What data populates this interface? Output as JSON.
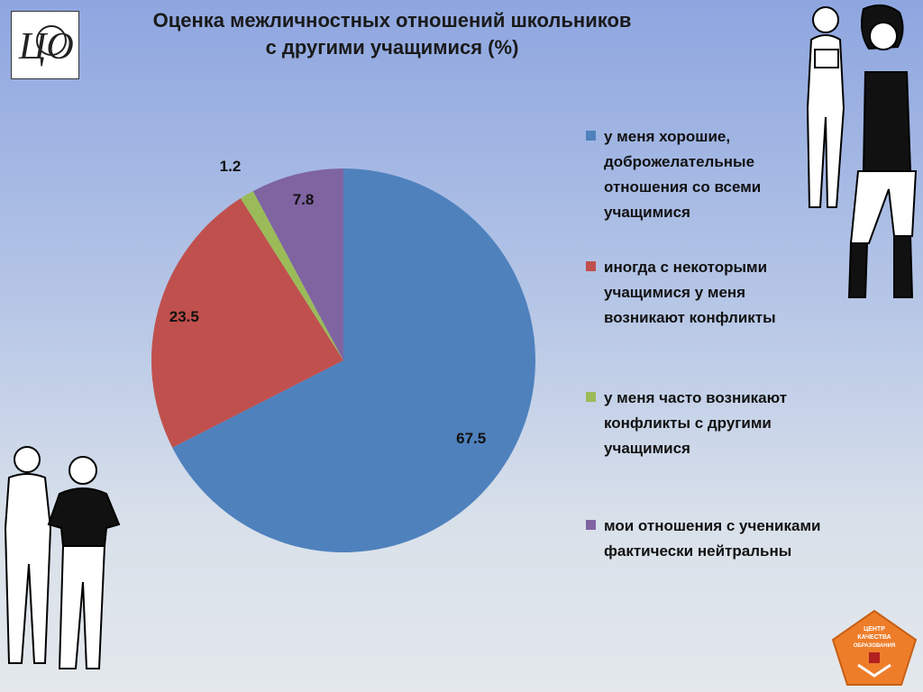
{
  "title": {
    "line1": "Оценка межличностных отношений школьников",
    "line2": "с другими учащимися (%)"
  },
  "logo": {
    "text": "ЦО"
  },
  "badge": {
    "lines": [
      "ЦЕНТР",
      "КАЧЕСТВА",
      "ОБРАЗОВАНИЯ"
    ]
  },
  "colors": {
    "blue": "#4f81bd",
    "red": "#c0504d",
    "green": "#9bbb59",
    "purple": "#8064a2",
    "badge": "#ee7d2a"
  },
  "chart_data": {
    "type": "pie",
    "title": "Оценка межличностных отношений школьников с другими учащимися (%)",
    "slices": [
      {
        "label": "у меня хорошие, доброжелательные отношения со всеми учащимися",
        "value": 67.5,
        "value_label": "67.5",
        "color": "#4f81bd"
      },
      {
        "label": "иногда с некоторыми учащимися у меня возникают конфликты",
        "value": 23.5,
        "value_label": "23.5",
        "color": "#c0504d"
      },
      {
        "label": "у меня часто возникают конфликты с другими учащимися",
        "value": 1.2,
        "value_label": "1.2",
        "color": "#9bbb59"
      },
      {
        "label": "мои отношения с учениками фактически нейтральны",
        "value": 7.8,
        "value_label": "7.8",
        "color": "#8064a2"
      }
    ],
    "legend": [
      "у меня хорошие, доброжелательные отношения со всеми учащимися",
      "иногда с некоторыми учащимися у меня возникают конфликты",
      "у меня часто возникают конфликты с другими учащимися",
      "мои отношения с учениками фактически нейтральны"
    ],
    "legend_position": "right",
    "start_angle": "12 o'clock, clockwise"
  }
}
